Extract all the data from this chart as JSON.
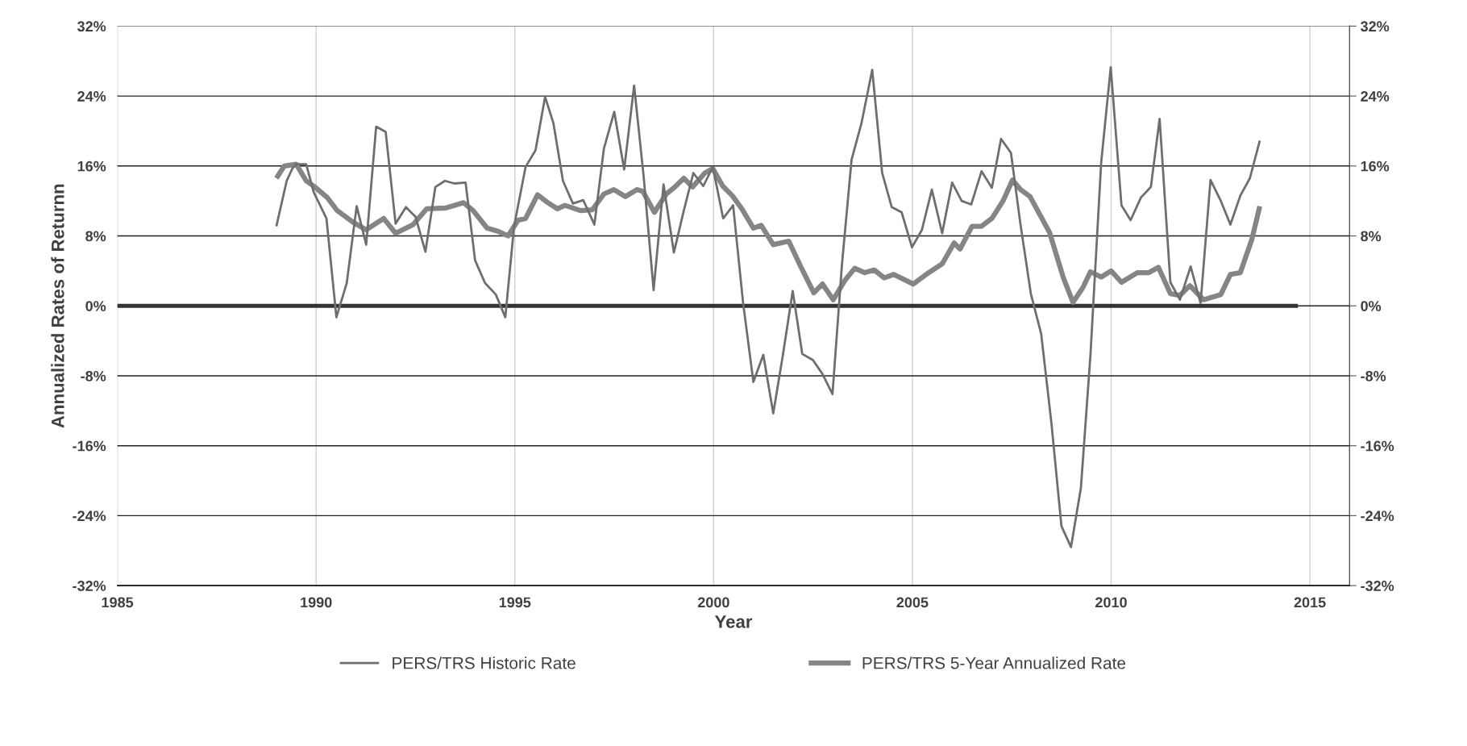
{
  "chart_data": {
    "type": "line",
    "xlabel": "Year",
    "ylabel": "Annualized Rates of Returnn",
    "xlim": [
      1985,
      2016
    ],
    "xticks": [
      1985,
      1990,
      1995,
      2000,
      2005,
      2010,
      2015
    ],
    "ylim": [
      -32,
      32
    ],
    "yticks": [
      {
        "value": -32,
        "label": "-32%"
      },
      {
        "value": -24,
        "label": "-24%"
      },
      {
        "value": -16,
        "label": "-16%"
      },
      {
        "value": -8,
        "label": "-8%"
      },
      {
        "value": 0,
        "label": "0%"
      },
      {
        "value": 8,
        "label": "8%"
      },
      {
        "value": 16,
        "label": "16%"
      },
      {
        "value": 24,
        "label": "24%"
      },
      {
        "value": 32,
        "label": "32%"
      }
    ],
    "y2lim": [
      -32,
      32
    ],
    "y2ticks": [
      {
        "value": -32,
        "label": "-32%"
      },
      {
        "value": -24,
        "label": "-24%"
      },
      {
        "value": -16,
        "label": "-16%"
      },
      {
        "value": -8,
        "label": "-8%"
      },
      {
        "value": 0,
        "label": "0%"
      },
      {
        "value": 8,
        "label": "8%"
      },
      {
        "value": 16,
        "label": "16%"
      },
      {
        "value": 24,
        "label": "24%"
      },
      {
        "value": 32,
        "label": "32%"
      }
    ],
    "grid": true,
    "legend": "bottom",
    "marker": "none",
    "line_style": "solid",
    "series": [
      {
        "name": "PERS/TRS Historic Rate",
        "color": "#6e6e6e",
        "x": [
          1989.0,
          1989.26,
          1989.4,
          1989.5,
          1989.75,
          1989.94,
          1990.26,
          1990.51,
          1990.77,
          1991.02,
          1991.26,
          1991.51,
          1991.75,
          1992.0,
          1992.26,
          1992.5,
          1992.75,
          1993.0,
          1993.24,
          1993.48,
          1993.76,
          1994.0,
          1994.25,
          1994.52,
          1994.76,
          1994.98,
          1995.27,
          1995.52,
          1995.76,
          1995.97,
          1996.21,
          1996.46,
          1996.72,
          1997.0,
          1997.24,
          1997.5,
          1997.75,
          1998.0,
          1998.24,
          1998.49,
          1998.74,
          1999.0,
          1999.25,
          1999.49,
          1999.74,
          1999.98,
          2000.24,
          2000.49,
          2000.74,
          2001.0,
          2001.25,
          2001.5,
          2001.74,
          2001.99,
          2002.23,
          2002.5,
          2002.74,
          2002.99,
          2003.23,
          2003.47,
          2003.72,
          2003.99,
          2004.24,
          2004.48,
          2004.73,
          2004.99,
          2005.24,
          2005.49,
          2005.75,
          2006.0,
          2006.24,
          2006.48,
          2006.74,
          2007.0,
          2007.23,
          2007.48,
          2007.72,
          2007.98,
          2008.24,
          2008.5,
          2008.75,
          2008.99,
          2009.24,
          2009.48,
          2009.75,
          2009.99,
          2010.26,
          2010.49,
          2010.75,
          2011.0,
          2011.22,
          2011.49,
          2011.73,
          2012.0,
          2012.25,
          2012.5,
          2012.76,
          2013.0,
          2013.25,
          2013.49,
          2013.74
        ],
        "values": [
          9.1,
          14.3,
          15.7,
          16.2,
          16.2,
          13.0,
          10.0,
          -1.3,
          2.6,
          11.4,
          7.0,
          20.5,
          19.9,
          9.4,
          11.3,
          10.2,
          6.2,
          13.6,
          14.3,
          14.0,
          14.1,
          5.2,
          2.6,
          1.3,
          -1.3,
          9.1,
          15.9,
          17.8,
          23.9,
          20.9,
          14.3,
          11.7,
          12.1,
          9.3,
          18.0,
          22.2,
          15.6,
          25.2,
          14.8,
          1.8,
          13.9,
          6.1,
          10.9,
          15.2,
          13.7,
          15.9,
          10.0,
          11.5,
          0.4,
          -8.7,
          -5.6,
          -12.3,
          -5.7,
          1.7,
          -5.5,
          -6.2,
          -7.8,
          -10.1,
          4.8,
          16.7,
          20.9,
          27.0,
          15.2,
          11.3,
          10.7,
          6.7,
          8.7,
          13.3,
          8.3,
          14.1,
          12.0,
          11.6,
          15.4,
          13.5,
          19.1,
          17.5,
          9.3,
          1.4,
          -3.2,
          -13.5,
          -25.2,
          -27.6,
          -20.8,
          -5.6,
          16.4,
          27.3,
          11.5,
          9.8,
          12.4,
          13.6,
          21.4,
          2.7,
          0.7,
          4.5,
          0.3,
          14.4,
          12.0,
          9.3,
          12.6,
          14.6,
          18.9
        ]
      },
      {
        "name": "PERS/TRS 5-Year Annualized Rate",
        "color": "#858585",
        "x": [
          1989.0,
          1989.2,
          1989.5,
          1989.75,
          1989.94,
          1990.28,
          1990.53,
          1990.92,
          1991.26,
          1991.7,
          1992.0,
          1992.44,
          1992.78,
          1993.27,
          1993.71,
          1993.95,
          1994.3,
          1994.59,
          1994.83,
          1995.08,
          1995.27,
          1995.57,
          1995.8,
          1996.07,
          1996.26,
          1996.65,
          1996.95,
          1997.24,
          1997.49,
          1997.78,
          1998.07,
          1998.22,
          1998.51,
          1998.81,
          1999.0,
          1999.25,
          1999.47,
          1999.78,
          1999.98,
          2000.23,
          2000.47,
          2000.71,
          2001.0,
          2001.2,
          2001.5,
          2001.89,
          2002.18,
          2002.52,
          2002.74,
          2003.01,
          2003.3,
          2003.55,
          2003.8,
          2004.04,
          2004.29,
          2004.53,
          2005.02,
          2005.41,
          2005.75,
          2006.05,
          2006.2,
          2006.5,
          2006.74,
          2007.0,
          2007.28,
          2007.52,
          2007.72,
          2007.96,
          2008.45,
          2008.8,
          2009.04,
          2009.29,
          2009.48,
          2009.75,
          2010.0,
          2010.26,
          2010.66,
          2010.95,
          2011.19,
          2011.49,
          2011.73,
          2011.98,
          2012.22,
          2012.32,
          2012.76,
          2013.0,
          2013.25,
          2013.54,
          2013.74
        ],
        "values": [
          14.6,
          16.0,
          16.2,
          14.3,
          13.7,
          12.4,
          10.9,
          9.6,
          8.7,
          10.0,
          8.3,
          9.3,
          11.1,
          11.2,
          11.8,
          10.9,
          8.9,
          8.5,
          8.0,
          9.8,
          10.0,
          12.7,
          11.9,
          11.1,
          11.5,
          10.9,
          11.0,
          12.8,
          13.3,
          12.5,
          13.3,
          13.1,
          10.7,
          12.8,
          13.5,
          14.6,
          13.6,
          15.2,
          15.7,
          13.7,
          12.6,
          11.1,
          8.9,
          9.2,
          7.0,
          7.4,
          4.6,
          1.5,
          2.5,
          0.7,
          2.9,
          4.3,
          3.8,
          4.1,
          3.2,
          3.6,
          2.5,
          3.8,
          4.8,
          7.2,
          6.5,
          9.1,
          9.1,
          10.0,
          12.0,
          14.4,
          13.3,
          12.5,
          8.4,
          3.2,
          0.4,
          2.1,
          3.9,
          3.3,
          4.0,
          2.7,
          3.8,
          3.8,
          4.4,
          1.4,
          1.2,
          2.3,
          1.2,
          0.7,
          1.3,
          3.6,
          3.8,
          7.6,
          11.4
        ]
      },
      {
        "color": "#333333",
        "x": [
          1985,
          2014.7
        ],
        "values": [
          0,
          0
        ]
      }
    ]
  }
}
